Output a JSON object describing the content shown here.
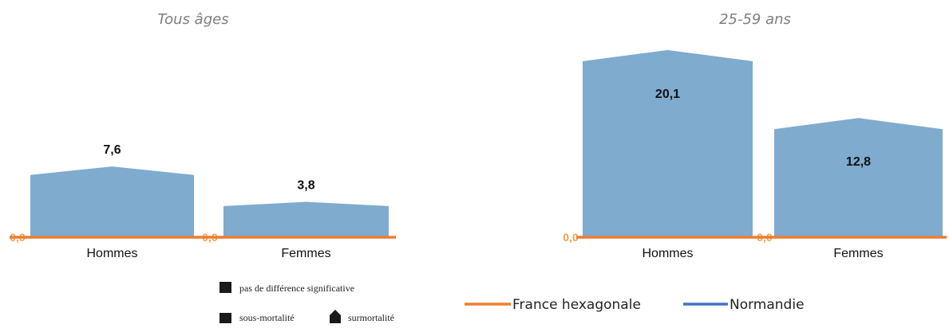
{
  "colors": {
    "bar": "#7fabce",
    "france_line": "#ed7d31",
    "normandie_line": "#4472c4",
    "zero_label": "#f0a34a",
    "title": "#7f7f7f",
    "marker": "#1a1a1a"
  },
  "chart_data": [
    {
      "type": "bar",
      "title": "Tous âges",
      "categories": [
        "Hommes",
        "Femmes"
      ],
      "values": [
        7.6,
        3.8
      ],
      "value_labels": [
        "7,6",
        "3,8"
      ],
      "baseline_labels": [
        "0,0",
        "0,0"
      ],
      "shapes": [
        "surmortalité",
        "surmortalité"
      ],
      "ylim": [
        0,
        22
      ],
      "grid": false
    },
    {
      "type": "bar",
      "title": "25-59 ans",
      "categories": [
        "Hommes",
        "Femmes"
      ],
      "values": [
        20.1,
        12.8
      ],
      "value_labels": [
        "20,1",
        "12,8"
      ],
      "baseline_labels": [
        "0,0",
        "0,0"
      ],
      "shapes": [
        "surmortalité",
        "surmortalité"
      ],
      "ylim": [
        0,
        22
      ],
      "grid": false
    }
  ],
  "shape_legend": {
    "no_difference": "pas de différence significative",
    "under": "sous-mortalité",
    "over": "surmortalité"
  },
  "series_legend": [
    {
      "name": "France hexagonale",
      "color": "#ed7d31"
    },
    {
      "name": "Normandie",
      "color": "#4472c4"
    }
  ]
}
